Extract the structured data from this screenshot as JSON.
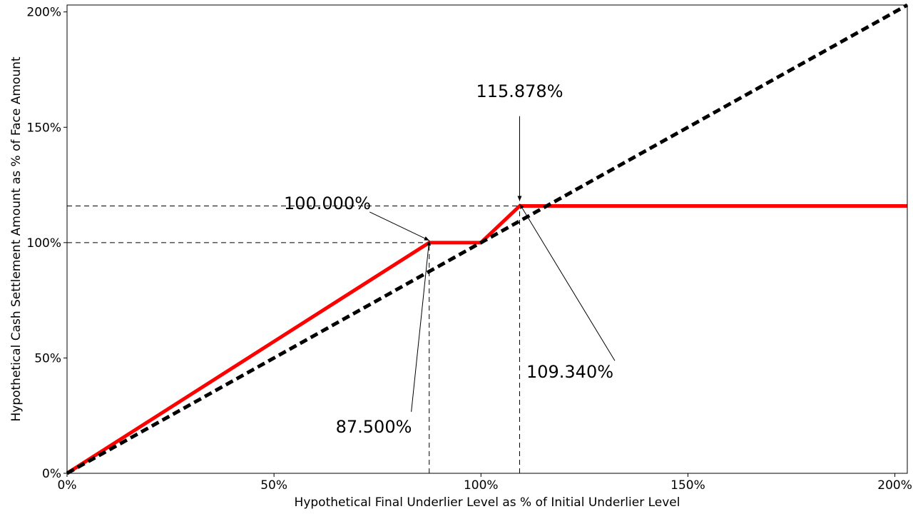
{
  "chart_data": {
    "type": "line",
    "xlabel": "Hypothetical Final Underlier Level as % of Initial Underlier Level",
    "ylabel": "Hypothetical Cash Settlement Amount as % of Face Amount",
    "xlim": [
      0,
      203
    ],
    "ylim": [
      0,
      203
    ],
    "x_ticks": [
      {
        "value": 0,
        "label": "0%"
      },
      {
        "value": 50,
        "label": "50%"
      },
      {
        "value": 100,
        "label": "100%"
      },
      {
        "value": 150,
        "label": "150%"
      },
      {
        "value": 200,
        "label": "200%"
      }
    ],
    "y_ticks": [
      {
        "value": 0,
        "label": "0%"
      },
      {
        "value": 50,
        "label": "50%"
      },
      {
        "value": 100,
        "label": "100%"
      },
      {
        "value": 150,
        "label": "150%"
      },
      {
        "value": 200,
        "label": "200%"
      }
    ],
    "grid": false,
    "series": [
      {
        "style": "solid",
        "color": "#ff0000",
        "points": [
          [
            0,
            0
          ],
          [
            87.5,
            100
          ],
          [
            100,
            100
          ],
          [
            109.34,
            115.878
          ],
          [
            203,
            115.878
          ]
        ]
      },
      {
        "style": "dashed",
        "color": "#000000",
        "points": [
          [
            0,
            0
          ],
          [
            203,
            203
          ]
        ]
      }
    ],
    "reference_lines": [
      {
        "orientation": "horizontal",
        "value": 100,
        "from": 0,
        "to": 87.5
      },
      {
        "orientation": "horizontal",
        "value": 115.878,
        "from": 0,
        "to": 109.34
      },
      {
        "orientation": "vertical",
        "value": 87.5,
        "from": 0,
        "to": 100
      },
      {
        "orientation": "vertical",
        "value": 109.34,
        "from": 0,
        "to": 115.878
      }
    ],
    "annotations": [
      {
        "label": "100.000%",
        "target": [
          87.5,
          100
        ],
        "text_at": [
          70,
          117
        ]
      },
      {
        "label": "115.878%",
        "target": [
          109.34,
          115.878
        ],
        "text_at": [
          109.34,
          161
        ]
      },
      {
        "label": "87.500%",
        "target": [
          87.5,
          100
        ],
        "text_at": [
          78,
          18
        ]
      },
      {
        "label": "109.340%",
        "target": [
          109.34,
          115.878
        ],
        "text_at": [
          122,
          42
        ]
      }
    ]
  }
}
